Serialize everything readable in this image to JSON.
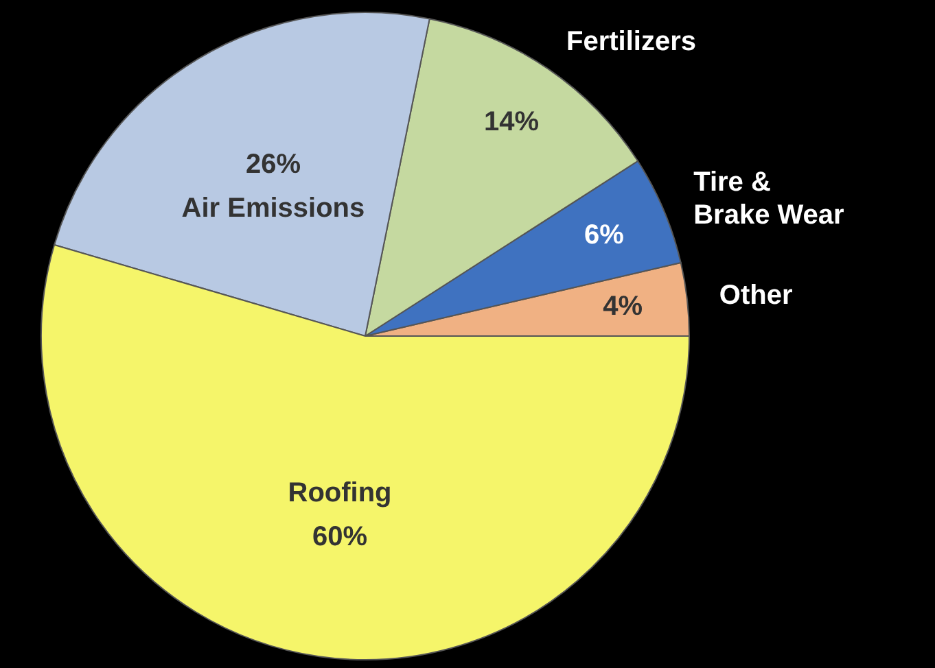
{
  "chart_data": {
    "type": "pie",
    "categories": [
      "Other",
      "Tire & Brake Wear",
      "Fertilizers",
      "Air Emissions",
      "Roofing"
    ],
    "values": [
      4,
      6,
      14,
      26,
      60
    ],
    "colors": [
      "#f0b183",
      "#3f72c0",
      "#c5d9a0",
      "#b8c9e3",
      "#f5f56a"
    ],
    "value_labels": [
      "4%",
      "6%",
      "14%",
      "26%",
      "60%"
    ]
  }
}
